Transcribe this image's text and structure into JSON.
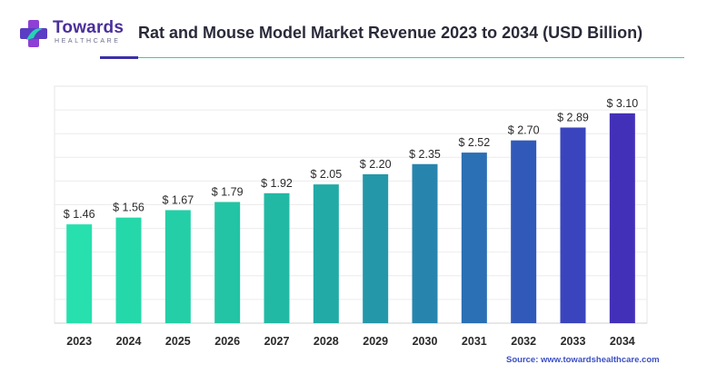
{
  "brand": {
    "name": "Towards",
    "sub": "HEALTHCARE",
    "colors": {
      "primary": "#4a2f9c",
      "accent": "#2ad1b5"
    }
  },
  "header": {
    "title": "Rat and Mouse Model Market Revenue 2023 to 2034 (USD Billion)"
  },
  "source": "Source: www.towardshealthcare.com",
  "chart_data": {
    "type": "bar",
    "title": "Rat and Mouse Model Market Revenue 2023 to 2034 (USD Billion)",
    "categories": [
      "2023",
      "2024",
      "2025",
      "2026",
      "2027",
      "2028",
      "2029",
      "2030",
      "2031",
      "2032",
      "2033",
      "2034"
    ],
    "values": [
      1.46,
      1.56,
      1.67,
      1.79,
      1.92,
      2.05,
      2.2,
      2.35,
      2.52,
      2.7,
      2.89,
      3.1
    ],
    "value_labels": [
      "$ 1.46",
      "$ 1.56",
      "$ 1.67",
      "$ 1.79",
      "$ 1.92",
      "$ 2.05",
      "$ 2.20",
      "$ 2.35",
      "$ 2.52",
      "$ 2.70",
      "$ 2.89",
      "$ 3.10"
    ],
    "xlabel": "",
    "ylabel": "",
    "ylim": [
      0,
      3.5
    ],
    "grid": true,
    "colors": [
      "#27e0ae",
      "#25d8aa",
      "#24cfa7",
      "#23c4a5",
      "#22b9a4",
      "#22aaa6",
      "#2498a8",
      "#2785ad",
      "#2b6fb4",
      "#3159b9",
      "#3a45bd",
      "#4330b8"
    ]
  }
}
